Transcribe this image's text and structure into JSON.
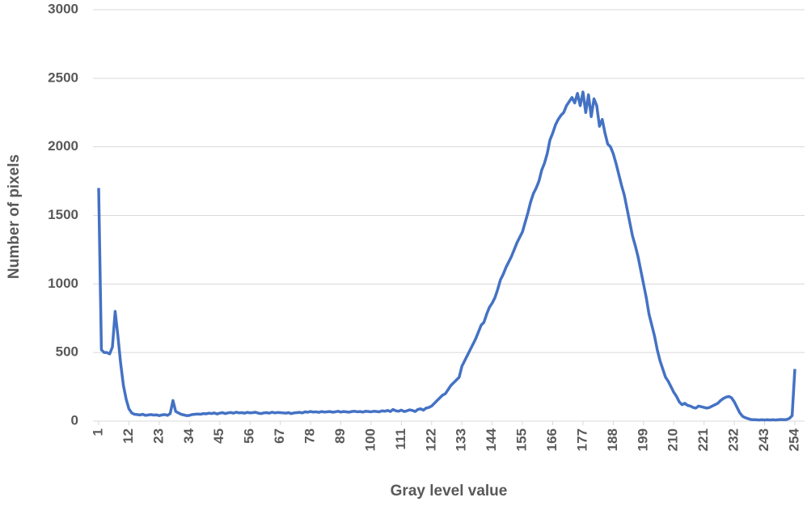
{
  "chart_data": {
    "type": "line",
    "x_label": "Gray level value",
    "y_label": "Number of pixels",
    "x": [
      1,
      2,
      3,
      4,
      5,
      6,
      7,
      8,
      9,
      10,
      11,
      12,
      13,
      14,
      15,
      16,
      17,
      18,
      19,
      20,
      21,
      22,
      23,
      24,
      25,
      26,
      27,
      28,
      29,
      30,
      31,
      32,
      33,
      34,
      35,
      36,
      37,
      38,
      39,
      40,
      41,
      42,
      43,
      44,
      45,
      46,
      47,
      48,
      49,
      50,
      51,
      52,
      53,
      54,
      55,
      56,
      57,
      58,
      59,
      60,
      61,
      62,
      63,
      64,
      65,
      66,
      67,
      68,
      69,
      70,
      71,
      72,
      73,
      74,
      75,
      76,
      77,
      78,
      79,
      80,
      81,
      82,
      83,
      84,
      85,
      86,
      87,
      88,
      89,
      90,
      91,
      92,
      93,
      94,
      95,
      96,
      97,
      98,
      99,
      100,
      101,
      102,
      103,
      104,
      105,
      106,
      107,
      108,
      109,
      110,
      111,
      112,
      113,
      114,
      115,
      116,
      117,
      118,
      119,
      120,
      121,
      122,
      123,
      124,
      125,
      126,
      127,
      128,
      129,
      130,
      131,
      132,
      133,
      134,
      135,
      136,
      137,
      138,
      139,
      140,
      141,
      142,
      143,
      144,
      145,
      146,
      147,
      148,
      149,
      150,
      151,
      152,
      153,
      154,
      155,
      156,
      157,
      158,
      159,
      160,
      161,
      162,
      163,
      164,
      165,
      166,
      167,
      168,
      169,
      170,
      171,
      172,
      173,
      174,
      175,
      176,
      177,
      178,
      179,
      180,
      181,
      182,
      183,
      184,
      185,
      186,
      187,
      188,
      189,
      190,
      191,
      192,
      193,
      194,
      195,
      196,
      197,
      198,
      199,
      200,
      201,
      202,
      203,
      204,
      205,
      206,
      207,
      208,
      209,
      210,
      211,
      212,
      213,
      214,
      215,
      216,
      217,
      218,
      219,
      220,
      221,
      222,
      223,
      224,
      225,
      226,
      227,
      228,
      229,
      230,
      231,
      232,
      233,
      234,
      235,
      236,
      237,
      238,
      239,
      240,
      241,
      242,
      243,
      244,
      245,
      246,
      247,
      248,
      249,
      250,
      251,
      252,
      253,
      254
    ],
    "series": [
      {
        "name": "Number of pixels",
        "color": "#4472c4",
        "values": [
          1700,
          520,
          500,
          500,
          490,
          540,
          800,
          620,
          420,
          260,
          160,
          90,
          60,
          50,
          48,
          45,
          50,
          42,
          45,
          48,
          44,
          46,
          40,
          45,
          48,
          42,
          55,
          150,
          70,
          60,
          50,
          45,
          40,
          42,
          48,
          50,
          52,
          50,
          55,
          53,
          58,
          55,
          60,
          52,
          58,
          62,
          55,
          60,
          63,
          58,
          65,
          60,
          62,
          58,
          64,
          60,
          62,
          65,
          58,
          55,
          60,
          62,
          58,
          65,
          60,
          63,
          62,
          60,
          58,
          62,
          55,
          60,
          62,
          64,
          60,
          68,
          65,
          70,
          66,
          68,
          64,
          70,
          66,
          68,
          70,
          65,
          68,
          72,
          66,
          70,
          68,
          65,
          70,
          72,
          68,
          70,
          66,
          72,
          70,
          68,
          72,
          70,
          68,
          75,
          72,
          78,
          70,
          85,
          75,
          72,
          80,
          70,
          75,
          82,
          78,
          70,
          85,
          90,
          80,
          95,
          100,
          110,
          130,
          150,
          170,
          190,
          200,
          230,
          260,
          280,
          300,
          320,
          400,
          440,
          480,
          520,
          560,
          600,
          650,
          700,
          720,
          780,
          830,
          860,
          900,
          960,
          1030,
          1070,
          1120,
          1160,
          1200,
          1250,
          1300,
          1340,
          1380,
          1450,
          1520,
          1600,
          1660,
          1700,
          1750,
          1830,
          1880,
          1950,
          2050,
          2100,
          2160,
          2200,
          2230,
          2250,
          2300,
          2330,
          2360,
          2320,
          2390,
          2300,
          2400,
          2250,
          2380,
          2220,
          2350,
          2300,
          2150,
          2200,
          2100,
          2020,
          2000,
          1950,
          1880,
          1800,
          1720,
          1650,
          1550,
          1450,
          1350,
          1280,
          1200,
          1100,
          1000,
          900,
          780,
          700,
          620,
          520,
          440,
          380,
          320,
          290,
          250,
          210,
          180,
          140,
          120,
          130,
          115,
          110,
          100,
          95,
          110,
          105,
          100,
          95,
          100,
          110,
          120,
          130,
          150,
          165,
          175,
          180,
          170,
          140,
          100,
          60,
          35,
          25,
          18,
          12,
          10,
          10,
          8,
          10,
          8,
          10,
          8,
          10,
          8,
          10,
          12,
          10,
          12,
          20,
          40,
          380
        ]
      }
    ],
    "xlim": [
      1,
      254
    ],
    "xticks": [
      1,
      12,
      23,
      34,
      45,
      56,
      67,
      78,
      89,
      100,
      111,
      122,
      133,
      144,
      155,
      166,
      177,
      188,
      199,
      210,
      221,
      232,
      243,
      254
    ],
    "ylim": [
      0,
      3000
    ],
    "yticks": [
      0,
      500,
      1000,
      1500,
      2000,
      2500,
      3000
    ],
    "grid": true
  }
}
